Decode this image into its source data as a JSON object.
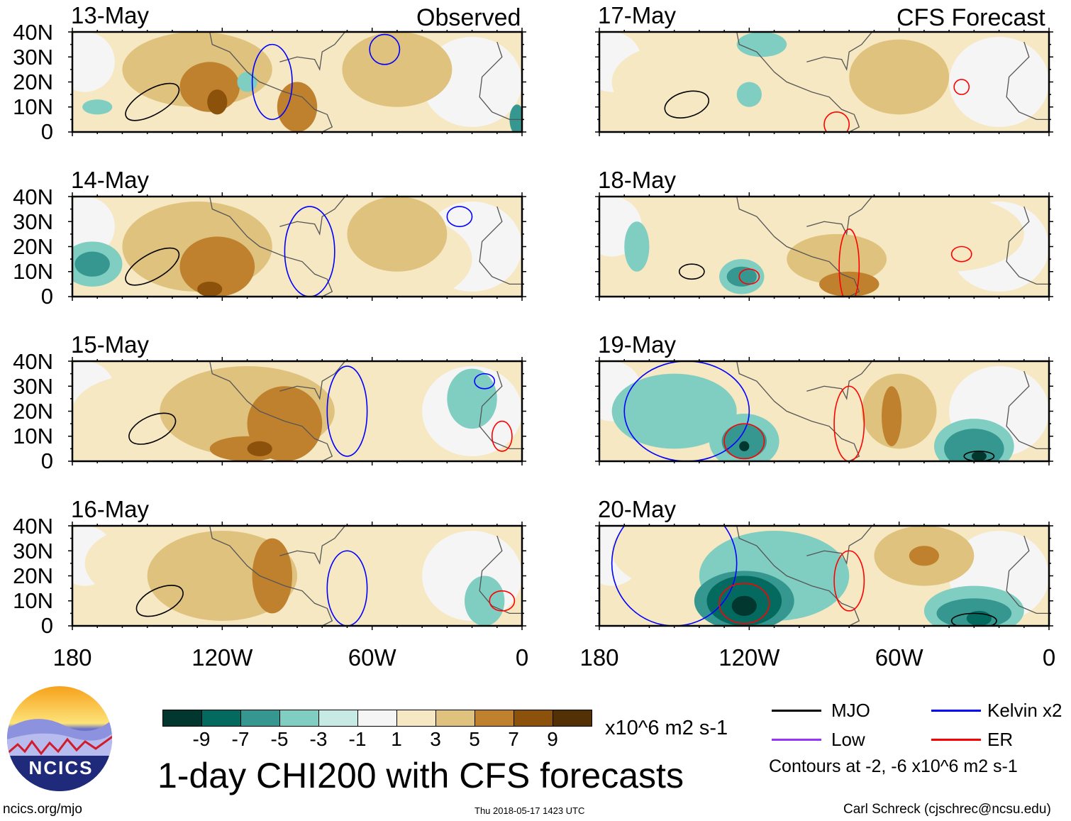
{
  "header": {
    "left_label": "Observed",
    "right_label": "CFS Forecast"
  },
  "axes": {
    "lat_labels": [
      "40N",
      "30N",
      "20N",
      "10N",
      "0"
    ],
    "lon_labels": [
      "180",
      "120W",
      "60W",
      "0"
    ]
  },
  "colorbar": {
    "colors": [
      "#01372f",
      "#046a60",
      "#35978f",
      "#80cdc1",
      "#c7eae5",
      "#f5f5f5",
      "#f6e8c3",
      "#dfc27d",
      "#bf812d",
      "#8c510a",
      "#543005"
    ],
    "labels": [
      "-9",
      "-7",
      "-5",
      "-3",
      "-1",
      "1",
      "3",
      "5",
      "7",
      "9"
    ],
    "units": "x10^6 m2 s-1"
  },
  "title": "1-day CHI200 with CFS forecasts",
  "legend": {
    "items": [
      {
        "label": "MJO",
        "color": "#000000"
      },
      {
        "label": "Kelvin x2",
        "color": "#0000ff"
      },
      {
        "label": "Low",
        "color": "#9933ff"
      },
      {
        "label": "ER",
        "color": "#ff0000"
      }
    ],
    "note": "Contours at -2, -6 x10^6 m2 s-1"
  },
  "footer": {
    "site": "ncics.org/mjo",
    "timestamp": "Thu 2018-05-17 1423 UTC",
    "author": "Carl Schreck (cjschrec@ncsu.edu)"
  },
  "logo": {
    "text": "NCICS"
  },
  "chart_data": {
    "type": "heatmap",
    "lon_range": [
      -180,
      0
    ],
    "lat_range": [
      0,
      40
    ],
    "panels": [
      {
        "date": "13-May",
        "blobs": [
          [
            5,
            -130,
            25,
            30,
            15
          ],
          [
            5,
            -50,
            25,
            22,
            15
          ],
          [
            7,
            -125,
            18,
            12,
            10
          ],
          [
            7,
            -90,
            10,
            8,
            10
          ],
          [
            9,
            -122,
            12,
            4,
            5
          ],
          [
            -3,
            -170,
            10,
            6,
            3
          ],
          [
            -3,
            -110,
            20,
            4,
            4
          ],
          [
            -5,
            -2,
            5,
            3,
            6
          ]
        ],
        "contours": [
          [
            "MJO",
            -148,
            12,
            12,
            5,
            -30
          ],
          [
            "Kelvin",
            -55,
            33,
            6,
            6,
            0
          ],
          [
            "Kelvin",
            -100,
            20,
            8,
            15,
            0
          ]
        ]
      },
      {
        "date": "14-May",
        "blobs": [
          [
            3,
            -60,
            15,
            40,
            20
          ],
          [
            5,
            -130,
            20,
            30,
            18
          ],
          [
            5,
            -50,
            25,
            20,
            15
          ],
          [
            7,
            -122,
            12,
            15,
            12
          ],
          [
            9,
            -125,
            3,
            5,
            3
          ],
          [
            -3,
            -172,
            13,
            12,
            9
          ],
          [
            -5,
            -172,
            13,
            7,
            5
          ]
        ],
        "contours": [
          [
            "MJO",
            -148,
            12,
            12,
            5,
            -30
          ],
          [
            "Kelvin",
            -25,
            32,
            5,
            4,
            0
          ],
          [
            "Kelvin",
            -85,
            18,
            10,
            18,
            0
          ]
        ]
      },
      {
        "date": "15-May",
        "blobs": [
          [
            3,
            -150,
            20,
            30,
            15
          ],
          [
            5,
            -110,
            20,
            35,
            18
          ],
          [
            7,
            -95,
            15,
            15,
            15
          ],
          [
            7,
            -110,
            5,
            15,
            5
          ],
          [
            9,
            -105,
            5,
            5,
            3
          ],
          [
            -3,
            -20,
            25,
            10,
            12
          ]
        ],
        "contours": [
          [
            "MJO",
            -148,
            13,
            10,
            5,
            -25
          ],
          [
            "Kelvin",
            -70,
            20,
            8,
            18,
            0
          ],
          [
            "Kelvin",
            -15,
            32,
            4,
            3,
            0
          ],
          [
            "ER",
            -8,
            10,
            4,
            6,
            0
          ]
        ]
      },
      {
        "date": "16-May",
        "blobs": [
          [
            3,
            -150,
            25,
            25,
            15
          ],
          [
            3,
            -60,
            25,
            20,
            15
          ],
          [
            5,
            -120,
            20,
            30,
            18
          ],
          [
            7,
            -100,
            20,
            8,
            15
          ],
          [
            -3,
            -15,
            10,
            8,
            10
          ]
        ],
        "contours": [
          [
            "MJO",
            -145,
            10,
            10,
            5,
            -25
          ],
          [
            "Kelvin",
            -70,
            15,
            8,
            15,
            0
          ],
          [
            "ER",
            -8,
            10,
            5,
            4,
            0
          ]
        ]
      },
      {
        "date": "17-May",
        "blobs": [
          [
            3,
            -150,
            20,
            25,
            15
          ],
          [
            3,
            -90,
            20,
            20,
            15
          ],
          [
            5,
            -60,
            22,
            20,
            15
          ],
          [
            -3,
            -120,
            15,
            5,
            5
          ],
          [
            -3,
            -115,
            35,
            10,
            5
          ]
        ],
        "contours": [
          [
            "MJO",
            -145,
            11,
            9,
            5,
            -15
          ],
          [
            "ER",
            -35,
            18,
            3,
            3,
            0
          ],
          [
            "ER",
            -85,
            3,
            5,
            5,
            0
          ]
        ]
      },
      {
        "date": "18-May",
        "blobs": [
          [
            3,
            -40,
            25,
            30,
            15
          ],
          [
            5,
            -85,
            15,
            20,
            10
          ],
          [
            7,
            -80,
            5,
            12,
            5
          ],
          [
            -3,
            -165,
            20,
            5,
            10
          ],
          [
            -3,
            -123,
            8,
            9,
            7
          ],
          [
            -5,
            -123,
            8,
            6,
            4
          ]
        ],
        "contours": [
          [
            "MJO",
            -143,
            10,
            5,
            3,
            0
          ],
          [
            "ER",
            -120,
            8,
            4,
            3,
            0
          ],
          [
            "ER",
            -80,
            12,
            4,
            15,
            0
          ],
          [
            "ER",
            -35,
            17,
            4,
            3,
            0
          ]
        ]
      },
      {
        "date": "19-May",
        "blobs": [
          [
            -3,
            -150,
            20,
            25,
            15
          ],
          [
            5,
            -60,
            20,
            15,
            15
          ],
          [
            7,
            -63,
            18,
            4,
            12
          ],
          [
            -3,
            -122,
            8,
            14,
            11
          ],
          [
            -5,
            -122,
            8,
            9,
            7
          ],
          [
            -9,
            -122,
            6,
            2,
            2
          ],
          [
            -3,
            -30,
            6,
            16,
            11
          ],
          [
            -5,
            -30,
            5,
            12,
            8
          ],
          [
            -9,
            -28,
            2,
            3,
            2
          ]
        ],
        "contours": [
          [
            "Kelvin",
            -145,
            20,
            25,
            20,
            0
          ],
          [
            "ER",
            -122,
            8,
            8,
            7,
            0
          ],
          [
            "ER",
            -80,
            15,
            6,
            15,
            0
          ],
          [
            "MJO",
            -28,
            2,
            6,
            2,
            0
          ]
        ]
      },
      {
        "date": "20-May",
        "blobs": [
          [
            3,
            -150,
            30,
            25,
            15
          ],
          [
            5,
            -50,
            28,
            20,
            12
          ],
          [
            7,
            -50,
            28,
            6,
            4
          ],
          [
            -3,
            -110,
            20,
            30,
            18
          ],
          [
            -5,
            -122,
            10,
            20,
            12
          ],
          [
            -7,
            -122,
            10,
            15,
            10
          ],
          [
            -9,
            -122,
            8,
            5,
            4
          ],
          [
            -3,
            -30,
            6,
            20,
            10
          ],
          [
            -5,
            -30,
            5,
            15,
            6
          ],
          [
            -7,
            -28,
            3,
            5,
            3
          ]
        ],
        "contours": [
          [
            "Kelvin",
            -150,
            25,
            25,
            25,
            0
          ],
          [
            "ER",
            -122,
            9,
            10,
            8,
            0
          ],
          [
            "ER",
            -80,
            18,
            6,
            12,
            0
          ],
          [
            "MJO",
            -30,
            2,
            9,
            3,
            0
          ]
        ]
      }
    ]
  }
}
